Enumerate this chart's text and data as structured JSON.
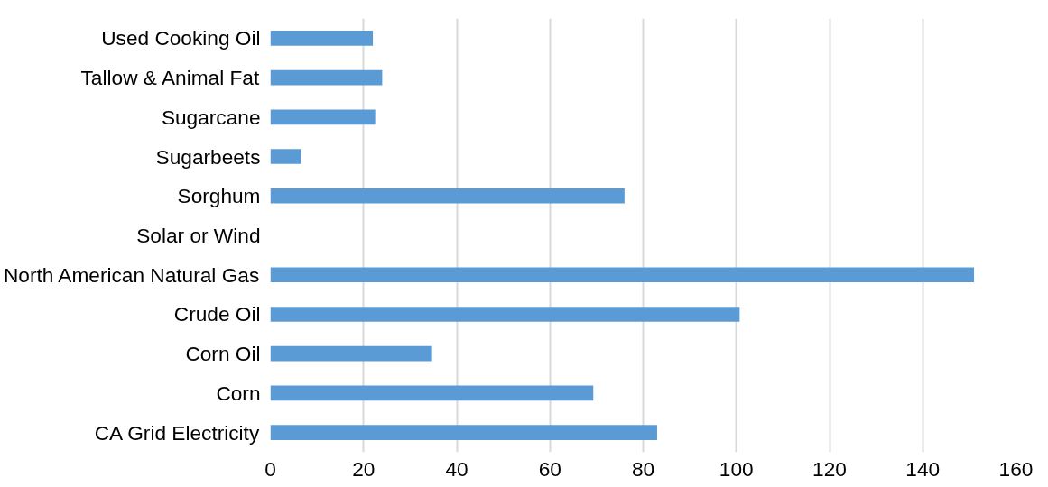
{
  "chart_data": {
    "type": "bar",
    "orientation": "horizontal",
    "categories": [
      "Used Cooking Oil",
      "Tallow & Animal Fat",
      "Sugarcane",
      "Sugarbeets",
      "Sorghum",
      "Solar or Wind",
      "North American Natural Gas",
      "Crude Oil",
      "Corn Oil",
      "Corn",
      "CA Grid Electricity"
    ],
    "values": [
      22,
      24,
      22.5,
      6.6,
      76,
      0,
      151,
      100.7,
      34.7,
      69.3,
      83
    ],
    "color": "#5b9bd5",
    "xlim": [
      0,
      160
    ],
    "xticks": [
      0,
      20,
      40,
      60,
      80,
      100,
      120,
      140,
      160
    ],
    "grid": "x"
  }
}
